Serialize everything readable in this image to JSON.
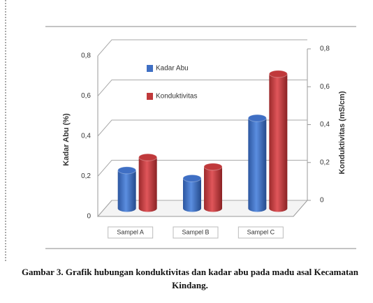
{
  "chart_data": {
    "type": "bar3d",
    "categories": [
      "Sampel A",
      "Sampel B",
      "Sampel C"
    ],
    "series": [
      {
        "name": "Kadar Abu",
        "color": "#3f6fc4",
        "values": [
          0.19,
          0.15,
          0.45
        ]
      },
      {
        "name": "Konduktivitas",
        "color": "#c0393b",
        "values": [
          0.27,
          0.22,
          0.71
        ],
        "axis": "y2"
      }
    ],
    "ylabel": "Kadar Abu (%)",
    "y2label": "Konduktivitas (mS/cm)",
    "ylim": [
      0,
      0.8
    ],
    "yticks": [
      0,
      {
        "value": 0.2,
        "label": "0,2"
      },
      {
        "value": 0.4,
        "label": "0,4"
      },
      {
        "value": 0.6,
        "label": "0,6"
      },
      {
        "value": 0.8,
        "label": "0,8"
      }
    ],
    "y2lim": [
      0,
      0.8
    ],
    "y2ticks": [
      0,
      {
        "value": 0.2,
        "label": "0,2"
      },
      {
        "value": 0.4,
        "label": "0,4"
      },
      {
        "value": 0.6,
        "label": "0,6"
      },
      {
        "value": 0.8,
        "label": "0,8"
      }
    ],
    "grid": true,
    "legend": "top-left",
    "caption": "Gambar 3. Grafik hubungan konduktivitas dan kadar abu pada madu asal Kecamatan Kindang."
  }
}
